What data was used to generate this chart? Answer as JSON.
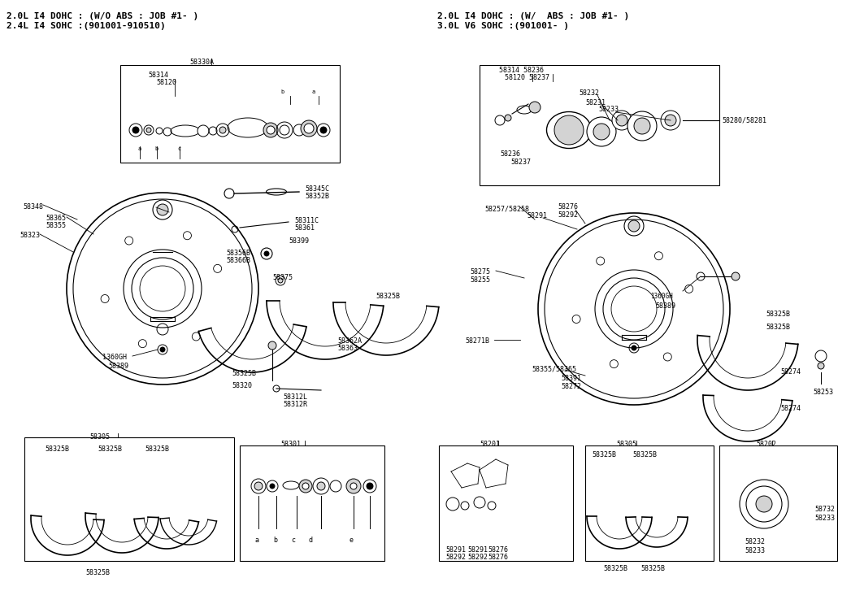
{
  "bg": "#ffffff",
  "fw": 10.63,
  "fh": 7.27,
  "dpi": 100,
  "hl1": "2.0L I4 DOHC : (W/O ABS : JOB #1- )",
  "hl2": "2.4L I4 SOHC :(901001-910510)",
  "hr1": "2.0L I4 DOHC : (W/  ABS : JOB #1- )",
  "hr2": "3.0L V6 SOHC :(901001- )"
}
